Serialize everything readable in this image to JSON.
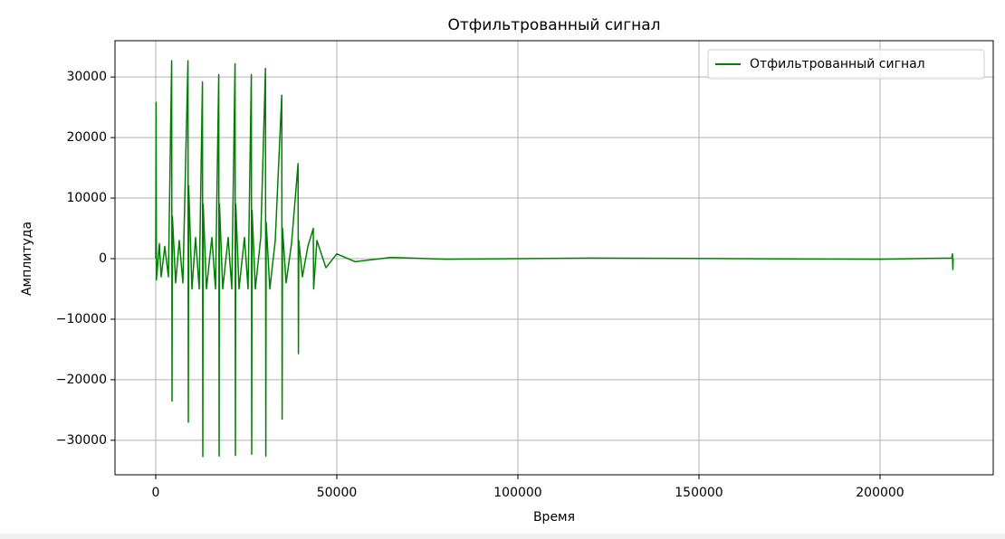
{
  "chart_data": {
    "type": "line",
    "title": "Отфильтрованный сигнал",
    "x_label": "Время",
    "y_label": "Амплитуда",
    "series": [
      {
        "name": "Отфильтрованный сигнал",
        "color": "#008000",
        "x": [
          0,
          100,
          200,
          1000,
          1500,
          2500,
          3500,
          4400,
          4500,
          4600,
          5500,
          6500,
          7500,
          8900,
          9000,
          9100,
          10000,
          11000,
          12000,
          12900,
          13000,
          13100,
          14000,
          15500,
          16500,
          17400,
          17500,
          17600,
          18500,
          20000,
          21000,
          21900,
          22000,
          22100,
          23000,
          24500,
          25500,
          26400,
          26500,
          26600,
          27500,
          29000,
          30300,
          30400,
          30500,
          31500,
          33000,
          34800,
          34900,
          35000,
          36000,
          37500,
          39300,
          39400,
          39500,
          40500,
          42000,
          43500,
          43600,
          44500,
          47000,
          50000,
          55000,
          65000,
          80000,
          120000,
          200000,
          219800,
          220000,
          220100,
          220200
        ],
        "values": [
          0,
          25800,
          -3500,
          2500,
          -3000,
          2000,
          -3000,
          32700,
          -23500,
          7000,
          -4000,
          3000,
          -4000,
          32700,
          -27000,
          12000,
          -5000,
          3500,
          -5000,
          29200,
          -32700,
          9000,
          -5000,
          3500,
          -5000,
          30400,
          -32600,
          9000,
          -5000,
          3500,
          -5000,
          32200,
          -32500,
          9000,
          -5000,
          3500,
          -5000,
          30400,
          -32300,
          8000,
          -5000,
          3500,
          31400,
          -32600,
          6000,
          -5000,
          3000,
          27000,
          -26500,
          5000,
          -4000,
          2500,
          15700,
          -15700,
          3000,
          -3000,
          2000,
          5000,
          -5000,
          3000,
          -1500,
          800,
          -500,
          200,
          -100,
          100,
          -100,
          100,
          800,
          -1800,
          0
        ]
      }
    ],
    "xlim": [
      -11250,
      231250
    ],
    "ylim": [
      -35700,
      36000
    ],
    "xticks": [
      0,
      50000,
      100000,
      150000,
      200000
    ],
    "yticks": [
      {
        "value": -30000,
        "label": "−30000"
      },
      {
        "value": -20000,
        "label": "−20000"
      },
      {
        "value": -10000,
        "label": "−10000"
      },
      0,
      10000,
      20000,
      30000
    ],
    "grid": true,
    "legend": "upper right"
  }
}
